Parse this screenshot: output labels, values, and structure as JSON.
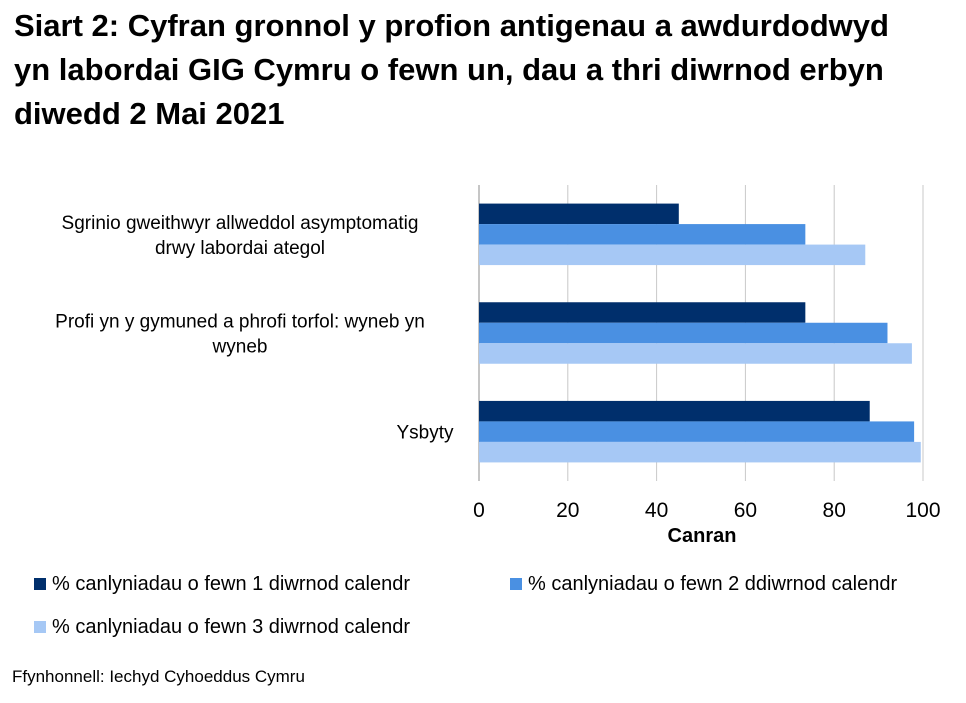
{
  "title": "Siart 2: Cyfran gronnol y profion antigenau a awdurdodwyd yn labordai GIG Cymru o fewn un, dau a thri diwrnod erbyn diwedd 2 Mai 2021",
  "source": "Ffynhonnell: Iechyd Cyhoeddus Cymru",
  "colors": {
    "series1": "#002f6c",
    "series2": "#4a90e2",
    "series3": "#a6c8f5",
    "grid": "#c8c8c8"
  },
  "chart_data": {
    "type": "bar",
    "orientation": "horizontal",
    "title": "Siart 2: Cyfran gronnol y profion antigenau a awdurdodwyd yn labordai GIG Cymru o fewn un, dau a thri diwrnod erbyn diwedd 2 Mai 2021",
    "xlabel": "Canran",
    "ylabel": "",
    "xlim": [
      0,
      100
    ],
    "xticks": [
      0,
      20,
      40,
      60,
      80,
      100
    ],
    "grid": true,
    "legend_position": "bottom",
    "categories": [
      [
        "Sgrinio gweithwyr allweddol asymptomatig",
        "drwy labordai ategol"
      ],
      [
        "Profi yn y gymuned a phrofi torfol: wyneb yn",
        "wyneb"
      ],
      [
        "Ysbyty"
      ]
    ],
    "series": [
      {
        "name": "% canlyniadau o fewn 1 diwrnod calendr",
        "values": [
          45,
          73.5,
          88
        ]
      },
      {
        "name": "% canlyniadau o fewn 2 ddiwrnod calendr",
        "values": [
          73.5,
          92,
          98
        ]
      },
      {
        "name": "% canlyniadau o fewn 3 diwrnod calendr",
        "values": [
          87,
          97.5,
          99.5
        ]
      }
    ]
  }
}
